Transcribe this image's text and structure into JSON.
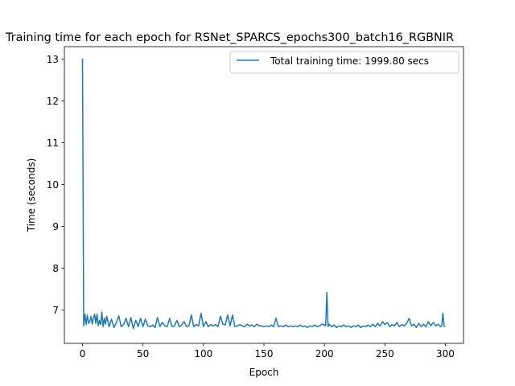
{
  "chart_data": {
    "type": "line",
    "title": "Training time for each epoch for RSNet_SPARCS_epochs300_batch16_RGBNIR",
    "xlabel": "Epoch",
    "ylabel": "Time (seconds)",
    "xlim": [
      -15,
      315
    ],
    "ylim": [
      6.2,
      13.3
    ],
    "xticks": [
      0,
      50,
      100,
      150,
      200,
      250,
      300
    ],
    "yticks": [
      7,
      8,
      9,
      10,
      11,
      12,
      13
    ],
    "grid": false,
    "legend_position": "top-right",
    "series": [
      {
        "name": "Total training time: 1999.80 secs",
        "color": "#1f77b4",
        "anchors": [
          [
            0,
            13.0
          ],
          [
            1,
            6.62
          ],
          [
            2,
            6.9
          ],
          [
            3,
            6.65
          ],
          [
            4,
            6.88
          ],
          [
            5,
            6.68
          ],
          [
            6,
            6.72
          ],
          [
            7,
            6.85
          ],
          [
            8,
            6.66
          ],
          [
            9,
            6.8
          ],
          [
            10,
            6.9
          ],
          [
            11,
            6.68
          ],
          [
            12,
            6.9
          ],
          [
            13,
            6.62
          ],
          [
            14,
            6.75
          ],
          [
            15,
            6.65
          ],
          [
            16,
            6.95
          ],
          [
            17,
            6.6
          ],
          [
            18,
            6.8
          ],
          [
            19,
            6.66
          ],
          [
            20,
            6.85
          ],
          [
            22,
            6.6
          ],
          [
            24,
            6.78
          ],
          [
            26,
            6.58
          ],
          [
            28,
            6.7
          ],
          [
            30,
            6.86
          ],
          [
            32,
            6.6
          ],
          [
            34,
            6.65
          ],
          [
            36,
            6.8
          ],
          [
            38,
            6.6
          ],
          [
            40,
            6.82
          ],
          [
            42,
            6.55
          ],
          [
            44,
            6.75
          ],
          [
            46,
            6.6
          ],
          [
            48,
            6.8
          ],
          [
            50,
            6.6
          ],
          [
            52,
            6.78
          ],
          [
            54,
            6.62
          ],
          [
            56,
            6.6
          ],
          [
            58,
            6.64
          ],
          [
            60,
            6.58
          ],
          [
            62,
            6.82
          ],
          [
            64,
            6.6
          ],
          [
            66,
            6.7
          ],
          [
            68,
            6.62
          ],
          [
            70,
            6.6
          ],
          [
            72,
            6.8
          ],
          [
            74,
            6.6
          ],
          [
            76,
            6.62
          ],
          [
            78,
            6.75
          ],
          [
            80,
            6.6
          ],
          [
            82,
            6.64
          ],
          [
            84,
            6.72
          ],
          [
            86,
            6.6
          ],
          [
            88,
            6.62
          ],
          [
            90,
            6.88
          ],
          [
            92,
            6.6
          ],
          [
            94,
            6.65
          ],
          [
            96,
            6.62
          ],
          [
            98,
            6.92
          ],
          [
            100,
            6.6
          ],
          [
            102,
            6.72
          ],
          [
            104,
            6.6
          ],
          [
            106,
            6.65
          ],
          [
            108,
            6.62
          ],
          [
            110,
            6.65
          ],
          [
            112,
            6.6
          ],
          [
            114,
            6.85
          ],
          [
            116,
            6.66
          ],
          [
            118,
            6.64
          ],
          [
            120,
            6.88
          ],
          [
            122,
            6.62
          ],
          [
            124,
            6.88
          ],
          [
            126,
            6.6
          ],
          [
            128,
            6.62
          ],
          [
            130,
            6.65
          ],
          [
            132,
            6.62
          ],
          [
            134,
            6.6
          ],
          [
            136,
            6.66
          ],
          [
            138,
            6.62
          ],
          [
            140,
            6.64
          ],
          [
            142,
            6.6
          ],
          [
            144,
            6.66
          ],
          [
            146,
            6.62
          ],
          [
            148,
            6.62
          ],
          [
            150,
            6.6
          ],
          [
            152,
            6.62
          ],
          [
            154,
            6.6
          ],
          [
            156,
            6.64
          ],
          [
            158,
            6.6
          ],
          [
            160,
            6.8
          ],
          [
            162,
            6.6
          ],
          [
            164,
            6.62
          ],
          [
            166,
            6.6
          ],
          [
            168,
            6.64
          ],
          [
            170,
            6.6
          ],
          [
            172,
            6.62
          ],
          [
            174,
            6.6
          ],
          [
            176,
            6.62
          ],
          [
            178,
            6.6
          ],
          [
            180,
            6.64
          ],
          [
            182,
            6.6
          ],
          [
            184,
            6.62
          ],
          [
            186,
            6.58
          ],
          [
            188,
            6.62
          ],
          [
            190,
            6.6
          ],
          [
            192,
            6.64
          ],
          [
            194,
            6.6
          ],
          [
            196,
            6.62
          ],
          [
            198,
            6.66
          ],
          [
            200,
            6.64
          ],
          [
            201,
            6.62
          ],
          [
            202,
            7.42
          ],
          [
            203,
            6.6
          ],
          [
            204,
            6.66
          ],
          [
            206,
            6.6
          ],
          [
            208,
            6.64
          ],
          [
            210,
            6.58
          ],
          [
            212,
            6.62
          ],
          [
            214,
            6.6
          ],
          [
            216,
            6.64
          ],
          [
            218,
            6.6
          ],
          [
            220,
            6.62
          ],
          [
            222,
            6.58
          ],
          [
            224,
            6.62
          ],
          [
            226,
            6.6
          ],
          [
            228,
            6.64
          ],
          [
            230,
            6.58
          ],
          [
            232,
            6.62
          ],
          [
            234,
            6.6
          ],
          [
            236,
            6.64
          ],
          [
            238,
            6.6
          ],
          [
            240,
            6.66
          ],
          [
            242,
            6.6
          ],
          [
            244,
            6.68
          ],
          [
            246,
            6.62
          ],
          [
            248,
            6.72
          ],
          [
            250,
            6.65
          ],
          [
            252,
            6.7
          ],
          [
            254,
            6.6
          ],
          [
            256,
            6.65
          ],
          [
            258,
            6.62
          ],
          [
            260,
            6.7
          ],
          [
            262,
            6.6
          ],
          [
            264,
            6.65
          ],
          [
            266,
            6.62
          ],
          [
            268,
            6.68
          ],
          [
            270,
            6.8
          ],
          [
            272,
            6.62
          ],
          [
            274,
            6.66
          ],
          [
            276,
            6.58
          ],
          [
            278,
            6.68
          ],
          [
            280,
            6.6
          ],
          [
            282,
            6.66
          ],
          [
            284,
            6.6
          ],
          [
            286,
            6.72
          ],
          [
            288,
            6.62
          ],
          [
            290,
            6.7
          ],
          [
            292,
            6.62
          ],
          [
            294,
            6.66
          ],
          [
            296,
            6.6
          ],
          [
            297,
            6.62
          ],
          [
            298,
            6.92
          ],
          [
            299,
            6.6
          ]
        ]
      }
    ]
  }
}
